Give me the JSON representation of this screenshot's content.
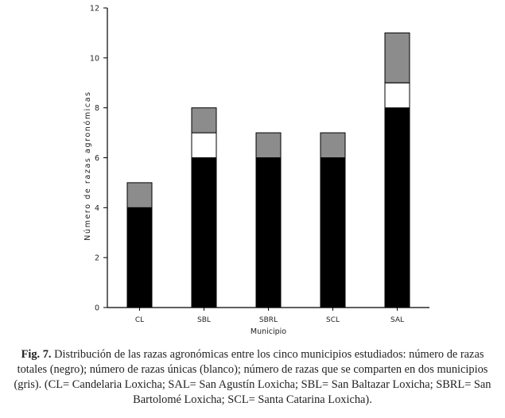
{
  "chart_data": {
    "type": "bar",
    "stacked": true,
    "title": "",
    "xlabel": "Municipio",
    "ylabel": "Número de razas agronómicas",
    "ylim": [
      0,
      12
    ],
    "yticks": [
      0,
      2,
      4,
      6,
      8,
      10,
      12
    ],
    "grid": false,
    "categories": [
      "CL",
      "SBL",
      "SBRL",
      "SCL",
      "SAL"
    ],
    "series": [
      {
        "values": [
          4,
          6,
          6,
          6,
          8
        ],
        "color": "#000000"
      },
      {
        "values": [
          0,
          1,
          0,
          0,
          1
        ],
        "color": "#ffffff"
      },
      {
        "values": [
          1,
          1,
          1,
          1,
          2
        ],
        "color": "#8c8c8c"
      }
    ]
  },
  "caption": {
    "label": "Fig. 7.",
    "text": " Distribución de las razas agronómicas entre los cinco municipios estudiados: número de razas totales (negro); número de razas únicas (blanco); número de razas que se comparten en dos municipios (gris). (CL= Candelaria Loxicha; SAL= San Agustín Loxicha; SBL= San Baltazar Loxicha; SBRL= San Bartolomé Loxicha; SCL= Santa Catarina Loxicha)."
  }
}
